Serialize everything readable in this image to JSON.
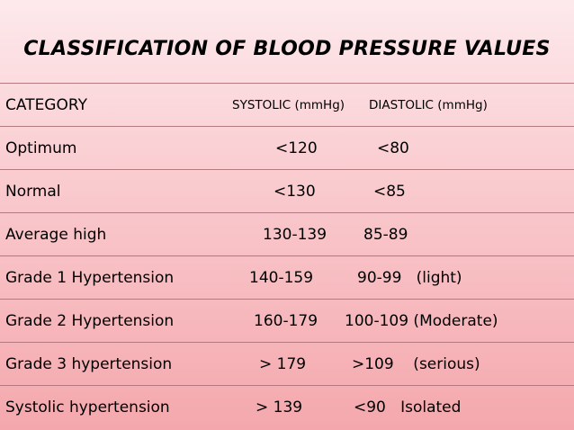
{
  "title": "CLASSIFICATION OF BLOOD PRESSURE VALUES",
  "headers": {
    "category": "CATEGORY",
    "systolic": "SYSTOLIC (mmHg)",
    "diastolic": "DIASTOLIC (mmHg)"
  },
  "rows": [
    {
      "category": "Optimum",
      "systolic": "<120",
      "diastolic": "<80"
    },
    {
      "category": "Normal",
      "systolic": "<130",
      "diastolic": "<85"
    },
    {
      "category": "Average high",
      "systolic": "130-139",
      "diastolic": "85-89"
    },
    {
      "category": "Grade 1 Hypertension",
      "systolic": "140-159",
      "diastolic": "90-99   (light)"
    },
    {
      "category": "Grade 2 Hypertension",
      "systolic": "160-179",
      "diastolic": "100-109 (Moderate)"
    },
    {
      "category": "Grade 3 hypertension",
      "systolic": "> 179",
      "diastolic": ">109    (serious)"
    },
    {
      "category": "Systolic hypertension",
      "systolic": "> 139",
      "diastolic": "<90   Isolated"
    }
  ],
  "colors": {
    "background_top": "#fde9ec",
    "background_bottom": "#f4a8ad",
    "row_border": "#b37a80"
  }
}
